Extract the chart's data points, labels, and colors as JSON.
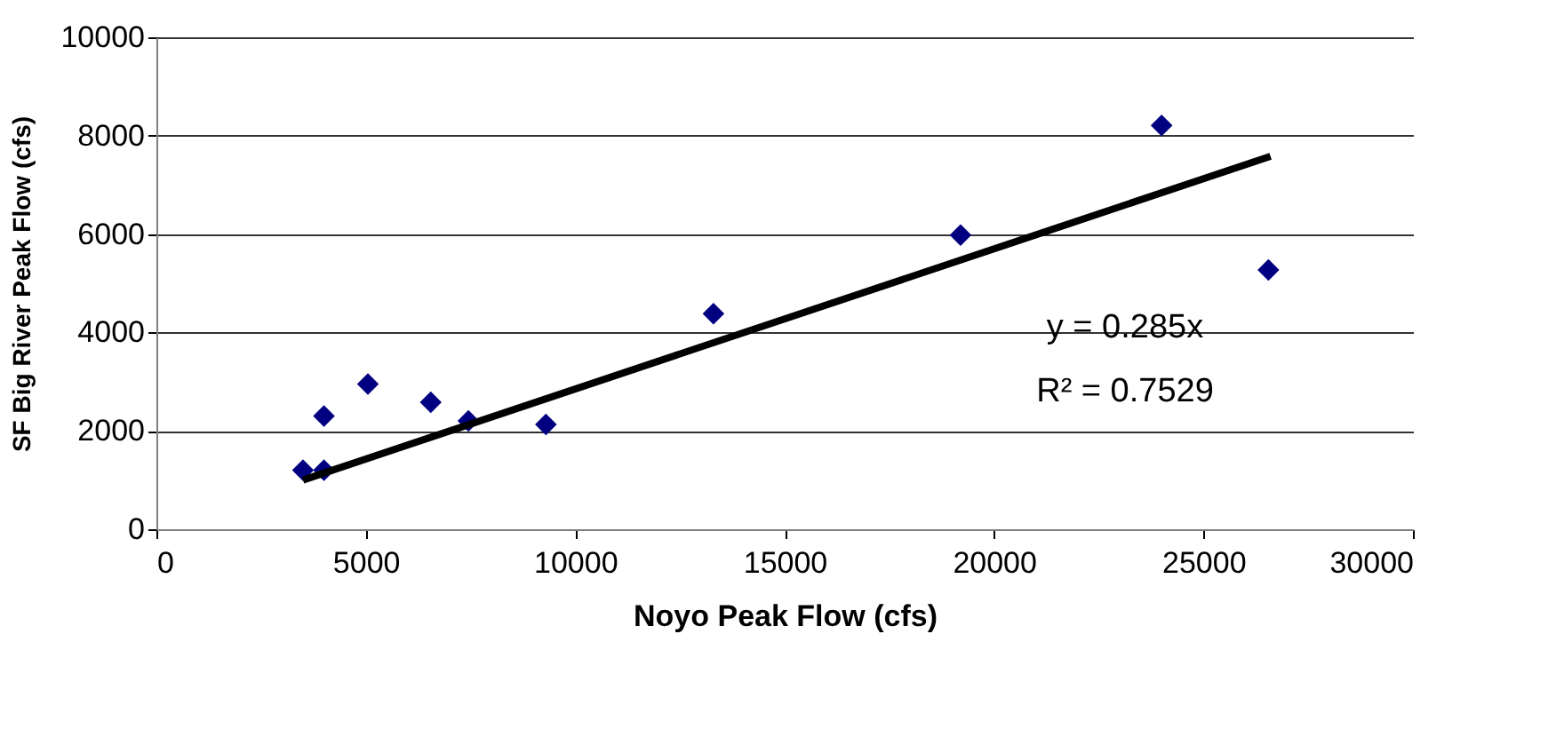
{
  "chart_data": {
    "type": "scatter",
    "xlabel": "Noyo Peak Flow (cfs)",
    "ylabel": "SF Big River Peak Flow (cfs)",
    "xlim": [
      0,
      30000
    ],
    "xticks": [
      0,
      5000,
      10000,
      15000,
      20000,
      25000,
      30000
    ],
    "ylim": [
      0,
      10000
    ],
    "yticks": [
      0,
      2000,
      4000,
      6000,
      8000,
      10000
    ],
    "grid": "y",
    "marker": "diamond",
    "series": [
      {
        "color": "#000080",
        "x": [
          3500,
          4000,
          4000,
          5050,
          6550,
          7450,
          9300,
          13300,
          19200,
          24000,
          26550
        ],
        "values": [
          1200,
          1200,
          2300,
          2950,
          2580,
          2200,
          2130,
          4380,
          5980,
          8210,
          5270
        ]
      },
      {
        "type": "line",
        "color": "#000000",
        "marker": "none",
        "x": [
          3500,
          26600
        ],
        "values": [
          1000,
          7580
        ]
      }
    ],
    "annotations": [
      "y = 0.285x",
      "R² = 0.7529"
    ]
  }
}
